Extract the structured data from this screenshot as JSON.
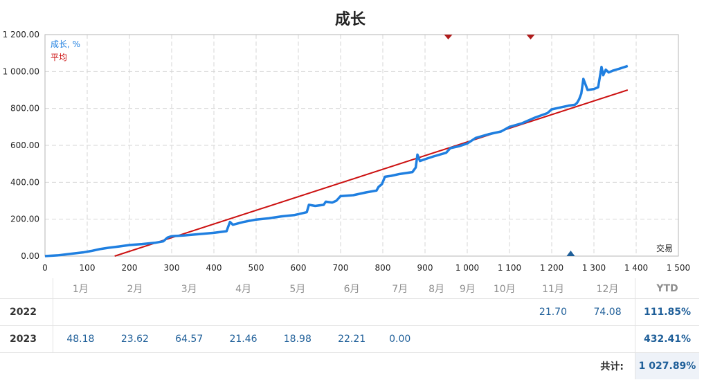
{
  "chart_data": {
    "type": "line",
    "title": "成长",
    "legend": [
      {
        "label": "成长, %",
        "color": "#1f7fe0"
      },
      {
        "label": "平均",
        "color": "#cc1111"
      }
    ],
    "legend_position": "top-left",
    "xlabel": "交易",
    "xlim": [
      0,
      1500
    ],
    "ylim": [
      0,
      1200
    ],
    "x_ticks": [
      "0",
      "100",
      "200",
      "300",
      "400",
      "500",
      "600",
      "700",
      "800",
      "900",
      "1 000",
      "1 100",
      "1 200",
      "1 300",
      "1 400",
      "1 500"
    ],
    "x_tick_values": [
      0,
      100,
      200,
      300,
      400,
      500,
      600,
      700,
      800,
      900,
      1000,
      1100,
      1200,
      1300,
      1400,
      1500
    ],
    "y_ticks": [
      "0.00",
      "200.00",
      "400.00",
      "600.00",
      "800.00",
      "1 000.00",
      "1 200.00"
    ],
    "y_tick_values": [
      0,
      200,
      400,
      600,
      800,
      1000,
      1200
    ],
    "grid": true,
    "series": [
      {
        "name": "成长, %",
        "color": "#1f7fe0",
        "points": [
          [
            0,
            0
          ],
          [
            30,
            4
          ],
          [
            60,
            12
          ],
          [
            90,
            20
          ],
          [
            110,
            28
          ],
          [
            130,
            38
          ],
          [
            150,
            45
          ],
          [
            175,
            52
          ],
          [
            200,
            60
          ],
          [
            230,
            65
          ],
          [
            260,
            72
          ],
          [
            280,
            80
          ],
          [
            290,
            100
          ],
          [
            300,
            108
          ],
          [
            330,
            112
          ],
          [
            360,
            118
          ],
          [
            400,
            126
          ],
          [
            430,
            135
          ],
          [
            438,
            185
          ],
          [
            445,
            170
          ],
          [
            470,
            185
          ],
          [
            500,
            198
          ],
          [
            530,
            205
          ],
          [
            560,
            215
          ],
          [
            590,
            222
          ],
          [
            620,
            238
          ],
          [
            625,
            278
          ],
          [
            640,
            272
          ],
          [
            660,
            278
          ],
          [
            665,
            295
          ],
          [
            680,
            290
          ],
          [
            690,
            300
          ],
          [
            700,
            325
          ],
          [
            730,
            330
          ],
          [
            760,
            345
          ],
          [
            785,
            355
          ],
          [
            790,
            375
          ],
          [
            798,
            390
          ],
          [
            805,
            430
          ],
          [
            820,
            435
          ],
          [
            840,
            445
          ],
          [
            870,
            455
          ],
          [
            878,
            480
          ],
          [
            882,
            550
          ],
          [
            888,
            515
          ],
          [
            900,
            525
          ],
          [
            920,
            540
          ],
          [
            950,
            560
          ],
          [
            960,
            585
          ],
          [
            980,
            595
          ],
          [
            1000,
            610
          ],
          [
            1020,
            640
          ],
          [
            1050,
            660
          ],
          [
            1080,
            675
          ],
          [
            1100,
            700
          ],
          [
            1130,
            720
          ],
          [
            1160,
            750
          ],
          [
            1190,
            775
          ],
          [
            1200,
            795
          ],
          [
            1220,
            805
          ],
          [
            1240,
            815
          ],
          [
            1255,
            820
          ],
          [
            1260,
            830
          ],
          [
            1265,
            850
          ],
          [
            1270,
            880
          ],
          [
            1275,
            960
          ],
          [
            1280,
            930
          ],
          [
            1285,
            900
          ],
          [
            1300,
            905
          ],
          [
            1310,
            915
          ],
          [
            1318,
            1025
          ],
          [
            1322,
            980
          ],
          [
            1328,
            1010
          ],
          [
            1335,
            995
          ],
          [
            1345,
            1005
          ],
          [
            1360,
            1015
          ],
          [
            1380,
            1030
          ]
        ]
      },
      {
        "name": "平均",
        "color": "#cc1111",
        "points": [
          [
            165,
            0
          ],
          [
            1380,
            900
          ]
        ]
      }
    ],
    "markers": {
      "top_red_x": [
        955,
        1150
      ],
      "bottom_blue_x": [
        1245
      ]
    }
  },
  "table": {
    "headers": [
      "1月",
      "2月",
      "3月",
      "4月",
      "5月",
      "6月",
      "7月",
      "8月",
      "9月",
      "10月",
      "11月",
      "12月"
    ],
    "ytd_label": "YTD",
    "rows": [
      {
        "year": "2022",
        "values": [
          "",
          "",
          "",
          "",
          "",
          "",
          "",
          "",
          "",
          "",
          "21.70",
          "74.08"
        ],
        "ytd": "111.85%"
      },
      {
        "year": "2023",
        "values": [
          "48.18",
          "23.62",
          "64.57",
          "21.46",
          "18.98",
          "22.21",
          "0.00",
          "",
          "",
          "",
          "",
          ""
        ],
        "ytd": "432.41%"
      }
    ],
    "total_label": "共计:",
    "total_value": "1 027.89%"
  }
}
